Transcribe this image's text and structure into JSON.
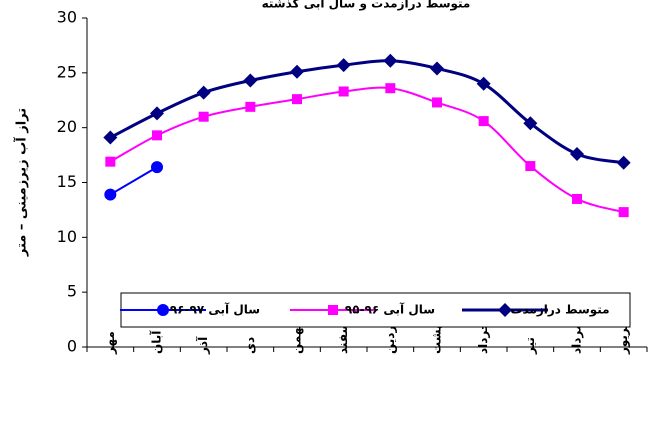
{
  "chart_data": {
    "type": "line",
    "title": "متوسط درازمدت و سال آبی گذشته",
    "y_label": "تراز آب زیرزمینی – متر",
    "categories": [
      "مهر",
      "آبان",
      "آذر",
      "دی",
      "بهمن",
      "اسفند",
      "فروردین",
      "اردیبهشت",
      "خرداد",
      "تیر",
      "مرداد",
      "شهریور"
    ],
    "series": [
      {
        "name": "متوسط درازمدت",
        "color": "#000080",
        "marker": "diamond",
        "values": [
          19.1,
          21.3,
          23.2,
          24.3,
          25.1,
          25.7,
          26.1,
          25.4,
          24.0,
          20.4,
          17.6,
          16.8
        ]
      },
      {
        "name": "سال آبی ۹۶-۹۵",
        "color": "#ff00ff",
        "marker": "square",
        "values": [
          16.9,
          19.3,
          21.0,
          21.9,
          22.6,
          23.3,
          23.6,
          22.3,
          20.6,
          16.5,
          13.5,
          12.3
        ]
      },
      {
        "name": "سال آبی ۹۷-۹۶",
        "color": "#0000ff",
        "marker": "circle",
        "values": [
          13.9,
          16.4,
          null,
          null,
          null,
          null,
          null,
          null,
          null,
          null,
          null,
          null
        ]
      }
    ],
    "ylim": [
      0,
      30
    ],
    "yticks": [
      0,
      5,
      10,
      15,
      20,
      25,
      30
    ],
    "legend": "bottom"
  }
}
